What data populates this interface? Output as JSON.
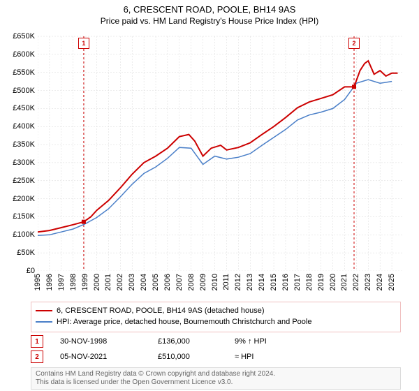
{
  "title": "6, CRESCENT ROAD, POOLE, BH14 9AS",
  "subtitle": "Price paid vs. HM Land Registry's House Price Index (HPI)",
  "chart": {
    "type": "line",
    "background_color": "#ffffff",
    "grid_color": "#d8d8d8",
    "xlim": [
      1995,
      2026
    ],
    "ylim": [
      0,
      650000
    ],
    "ytick_step": 50000,
    "yticks_labels": [
      "£0",
      "£50K",
      "£100K",
      "£150K",
      "£200K",
      "£250K",
      "£300K",
      "£350K",
      "£400K",
      "£450K",
      "£500K",
      "£550K",
      "£600K",
      "£650K"
    ],
    "xticks": [
      1995,
      1996,
      1997,
      1998,
      1999,
      2000,
      2001,
      2002,
      2003,
      2004,
      2005,
      2006,
      2007,
      2008,
      2009,
      2010,
      2011,
      2012,
      2013,
      2014,
      2015,
      2016,
      2017,
      2018,
      2019,
      2020,
      2021,
      2022,
      2023,
      2024,
      2025
    ],
    "series": [
      {
        "name": "price_paid",
        "label": "6, CRESCENT ROAD, POOLE, BH14 9AS (detached house)",
        "color": "#cc0000",
        "line_width": 2,
        "data": [
          [
            1995,
            108000
          ],
          [
            1996,
            112000
          ],
          [
            1997,
            120000
          ],
          [
            1998,
            128000
          ],
          [
            1998.9,
            136000
          ],
          [
            1999.5,
            150000
          ],
          [
            2000,
            168000
          ],
          [
            2001,
            195000
          ],
          [
            2002,
            230000
          ],
          [
            2003,
            268000
          ],
          [
            2004,
            300000
          ],
          [
            2005,
            318000
          ],
          [
            2006,
            340000
          ],
          [
            2007,
            372000
          ],
          [
            2007.8,
            378000
          ],
          [
            2008.3,
            360000
          ],
          [
            2009,
            318000
          ],
          [
            2009.7,
            340000
          ],
          [
            2010.5,
            348000
          ],
          [
            2011,
            335000
          ],
          [
            2012,
            342000
          ],
          [
            2013,
            355000
          ],
          [
            2014,
            378000
          ],
          [
            2015,
            400000
          ],
          [
            2016,
            425000
          ],
          [
            2017,
            452000
          ],
          [
            2018,
            468000
          ],
          [
            2019,
            478000
          ],
          [
            2020,
            488000
          ],
          [
            2021,
            510000
          ],
          [
            2021.8,
            510000
          ],
          [
            2022.3,
            555000
          ],
          [
            2022.7,
            575000
          ],
          [
            2023,
            582000
          ],
          [
            2023.5,
            545000
          ],
          [
            2024,
            555000
          ],
          [
            2024.5,
            540000
          ],
          [
            2025,
            548000
          ],
          [
            2025.5,
            548000
          ]
        ]
      },
      {
        "name": "hpi",
        "label": "HPI: Average price, detached house, Bournemouth Christchurch and Poole",
        "color": "#4a7fc8",
        "line_width": 1.5,
        "data": [
          [
            1995,
            98000
          ],
          [
            1996,
            100000
          ],
          [
            1997,
            108000
          ],
          [
            1998,
            116000
          ],
          [
            1999,
            130000
          ],
          [
            2000,
            148000
          ],
          [
            2001,
            172000
          ],
          [
            2002,
            205000
          ],
          [
            2003,
            240000
          ],
          [
            2004,
            270000
          ],
          [
            2005,
            288000
          ],
          [
            2006,
            312000
          ],
          [
            2007,
            342000
          ],
          [
            2008,
            340000
          ],
          [
            2009,
            295000
          ],
          [
            2010,
            318000
          ],
          [
            2011,
            310000
          ],
          [
            2012,
            315000
          ],
          [
            2013,
            325000
          ],
          [
            2014,
            348000
          ],
          [
            2015,
            370000
          ],
          [
            2016,
            392000
          ],
          [
            2017,
            418000
          ],
          [
            2018,
            432000
          ],
          [
            2019,
            440000
          ],
          [
            2020,
            450000
          ],
          [
            2021,
            475000
          ],
          [
            2022,
            520000
          ],
          [
            2023,
            530000
          ],
          [
            2024,
            520000
          ],
          [
            2025,
            525000
          ]
        ]
      }
    ],
    "transactions": [
      {
        "num": "1",
        "year": 1998.9,
        "value": 136000,
        "color": "#cc0000"
      },
      {
        "num": "2",
        "year": 2021.8,
        "value": 510000,
        "color": "#cc0000"
      }
    ]
  },
  "legend": {
    "border_color": "#f0c0c0",
    "items": [
      {
        "color": "#cc0000",
        "label": "6, CRESCENT ROAD, POOLE, BH14 9AS (detached house)"
      },
      {
        "color": "#4a7fc8",
        "label": "HPI: Average price, detached house, Bournemouth Christchurch and Poole"
      }
    ]
  },
  "transactions_table": {
    "rows": [
      {
        "num": "1",
        "color": "#cc0000",
        "date": "30-NOV-1998",
        "price": "£136,000",
        "pct": "9% ↑ HPI"
      },
      {
        "num": "2",
        "color": "#cc0000",
        "date": "05-NOV-2021",
        "price": "£510,000",
        "pct": "≈ HPI"
      }
    ]
  },
  "footer_line1": "Contains HM Land Registry data © Crown copyright and database right 2024.",
  "footer_line2": "This data is licensed under the Open Government Licence v3.0.",
  "axis_label_fontsize": 11,
  "label_color": "#000000"
}
